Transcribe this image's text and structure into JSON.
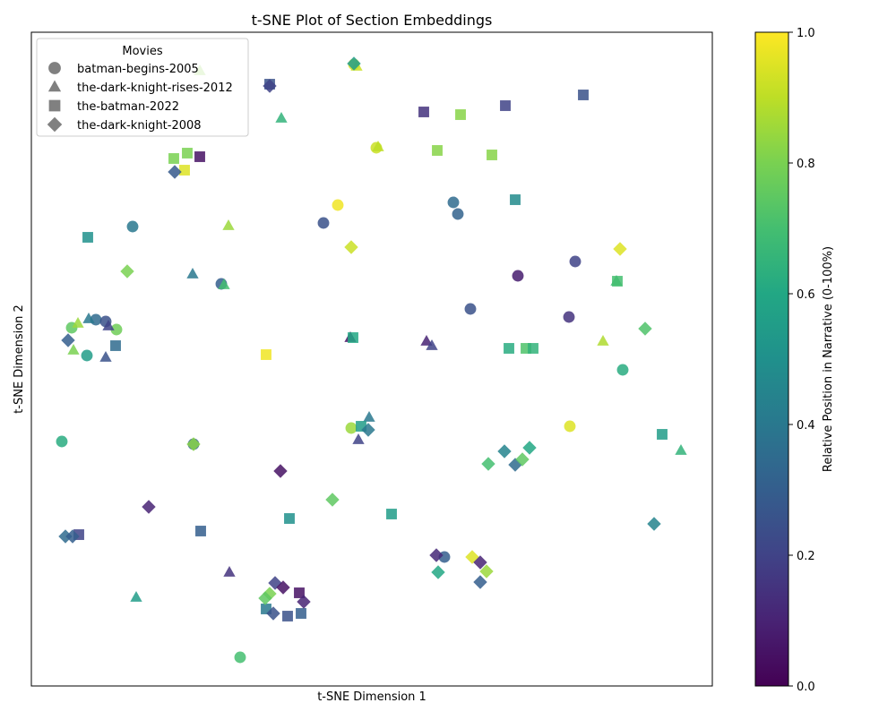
{
  "chart_data": {
    "type": "scatter",
    "title": "t-SNE Plot of Section Embeddings",
    "xlabel": "t-SNE Dimension 1",
    "ylabel": "t-SNE Dimension 2",
    "xlim": [
      0,
      760
    ],
    "ylim": [
      0,
      730
    ],
    "x_ticks_shown": false,
    "y_ticks_shown": false,
    "grid": false,
    "legend": {
      "title": "Movies",
      "placement": "top-left",
      "entries": [
        {
          "label": "batman-begins-2005",
          "marker": "circle"
        },
        {
          "label": "the-dark-knight-rises-2012",
          "marker": "triangle"
        },
        {
          "label": "the-batman-2022",
          "marker": "square"
        },
        {
          "label": "the-dark-knight-2008",
          "marker": "diamond"
        }
      ]
    },
    "colorbar": {
      "label": "Relative Position in Narrative (0-100%)",
      "range": [
        0,
        1
      ],
      "ticks": [
        "0.0",
        "0.2",
        "0.4",
        "0.6",
        "0.8",
        "1.0"
      ],
      "colormap": "viridis"
    },
    "series": [
      {
        "name": "batman-begins-2005",
        "marker": "circle",
        "points": [
          {
            "x": 360,
            "y": 694,
            "c": 0.95
          },
          {
            "x": 385,
            "y": 601,
            "c": 0.92
          },
          {
            "x": 326,
            "y": 517,
            "c": 0.25
          },
          {
            "x": 342,
            "y": 537,
            "c": 0.98
          },
          {
            "x": 113,
            "y": 513,
            "c": 0.4
          },
          {
            "x": 212,
            "y": 449,
            "c": 0.3
          },
          {
            "x": 471,
            "y": 540,
            "c": 0.35
          },
          {
            "x": 476,
            "y": 527,
            "c": 0.32
          },
          {
            "x": 607,
            "y": 474,
            "c": 0.2
          },
          {
            "x": 543,
            "y": 458,
            "c": 0.08
          },
          {
            "x": 490,
            "y": 421,
            "c": 0.25
          },
          {
            "x": 600,
            "y": 412,
            "c": 0.15
          },
          {
            "x": 45,
            "y": 400,
            "c": 0.75
          },
          {
            "x": 72,
            "y": 409,
            "c": 0.35
          },
          {
            "x": 83,
            "y": 407,
            "c": 0.25
          },
          {
            "x": 95,
            "y": 398,
            "c": 0.78
          },
          {
            "x": 62,
            "y": 369,
            "c": 0.55
          },
          {
            "x": 660,
            "y": 353,
            "c": 0.62
          },
          {
            "x": 34,
            "y": 273,
            "c": 0.62
          },
          {
            "x": 357,
            "y": 288,
            "c": 0.85
          },
          {
            "x": 181,
            "y": 270,
            "c": 0.32
          },
          {
            "x": 601,
            "y": 290,
            "c": 0.95
          },
          {
            "x": 461,
            "y": 144,
            "c": 0.3
          },
          {
            "x": 233,
            "y": 32,
            "c": 0.7
          }
        ]
      },
      {
        "name": "the-dark-knight-rises-2012",
        "marker": "triangle",
        "points": [
          {
            "x": 363,
            "y": 692,
            "c": 0.92
          },
          {
            "x": 279,
            "y": 634,
            "c": 0.65
          },
          {
            "x": 387,
            "y": 602,
            "c": 0.9
          },
          {
            "x": 188,
            "y": 687,
            "c": 0.82
          },
          {
            "x": 220,
            "y": 514,
            "c": 0.85
          },
          {
            "x": 180,
            "y": 460,
            "c": 0.4
          },
          {
            "x": 215,
            "y": 448,
            "c": 0.7
          },
          {
            "x": 52,
            "y": 405,
            "c": 0.85
          },
          {
            "x": 64,
            "y": 410,
            "c": 0.4
          },
          {
            "x": 86,
            "y": 402,
            "c": 0.2
          },
          {
            "x": 47,
            "y": 375,
            "c": 0.8
          },
          {
            "x": 83,
            "y": 367,
            "c": 0.25
          },
          {
            "x": 356,
            "y": 389,
            "c": 0.05
          },
          {
            "x": 441,
            "y": 385,
            "c": 0.1
          },
          {
            "x": 447,
            "y": 380,
            "c": 0.2
          },
          {
            "x": 638,
            "y": 385,
            "c": 0.88
          },
          {
            "x": 653,
            "y": 452,
            "c": 0.68
          },
          {
            "x": 377,
            "y": 300,
            "c": 0.4
          },
          {
            "x": 365,
            "y": 275,
            "c": 0.2
          },
          {
            "x": 725,
            "y": 263,
            "c": 0.65
          },
          {
            "x": 221,
            "y": 127,
            "c": 0.15
          },
          {
            "x": 117,
            "y": 99,
            "c": 0.55
          }
        ]
      },
      {
        "name": "the-batman-2022",
        "marker": "square",
        "points": [
          {
            "x": 266,
            "y": 672,
            "c": 0.25
          },
          {
            "x": 438,
            "y": 641,
            "c": 0.15
          },
          {
            "x": 479,
            "y": 638,
            "c": 0.82
          },
          {
            "x": 529,
            "y": 648,
            "c": 0.2
          },
          {
            "x": 616,
            "y": 660,
            "c": 0.25
          },
          {
            "x": 453,
            "y": 598,
            "c": 0.82
          },
          {
            "x": 514,
            "y": 593,
            "c": 0.82
          },
          {
            "x": 159,
            "y": 589,
            "c": 0.8
          },
          {
            "x": 174,
            "y": 595,
            "c": 0.8
          },
          {
            "x": 188,
            "y": 591,
            "c": 0.05
          },
          {
            "x": 171,
            "y": 576,
            "c": 0.95
          },
          {
            "x": 540,
            "y": 543,
            "c": 0.48
          },
          {
            "x": 63,
            "y": 501,
            "c": 0.5
          },
          {
            "x": 359,
            "y": 389,
            "c": 0.6
          },
          {
            "x": 262,
            "y": 370,
            "c": 0.98
          },
          {
            "x": 533,
            "y": 377,
            "c": 0.62
          },
          {
            "x": 552,
            "y": 377,
            "c": 0.72
          },
          {
            "x": 560,
            "y": 377,
            "c": 0.65
          },
          {
            "x": 654,
            "y": 452,
            "c": 0.7
          },
          {
            "x": 94,
            "y": 380,
            "c": 0.35
          },
          {
            "x": 368,
            "y": 290,
            "c": 0.55
          },
          {
            "x": 704,
            "y": 281,
            "c": 0.55
          },
          {
            "x": 288,
            "y": 187,
            "c": 0.5
          },
          {
            "x": 402,
            "y": 192,
            "c": 0.55
          },
          {
            "x": 189,
            "y": 173,
            "c": 0.3
          },
          {
            "x": 53,
            "y": 169,
            "c": 0.2
          },
          {
            "x": 299,
            "y": 104,
            "c": 0.05
          },
          {
            "x": 262,
            "y": 86,
            "c": 0.4
          },
          {
            "x": 286,
            "y": 78,
            "c": 0.25
          },
          {
            "x": 301,
            "y": 81,
            "c": 0.3
          }
        ]
      },
      {
        "name": "the-dark-knight-2008",
        "marker": "diamond",
        "points": [
          {
            "x": 266,
            "y": 670,
            "c": 0.2
          },
          {
            "x": 360,
            "y": 695,
            "c": 0.55
          },
          {
            "x": 160,
            "y": 574,
            "c": 0.28
          },
          {
            "x": 357,
            "y": 490,
            "c": 0.92
          },
          {
            "x": 657,
            "y": 488,
            "c": 0.95
          },
          {
            "x": 107,
            "y": 463,
            "c": 0.8
          },
          {
            "x": 685,
            "y": 399,
            "c": 0.72
          },
          {
            "x": 41,
            "y": 386,
            "c": 0.3
          },
          {
            "x": 376,
            "y": 286,
            "c": 0.4
          },
          {
            "x": 181,
            "y": 270,
            "c": 0.82
          },
          {
            "x": 510,
            "y": 248,
            "c": 0.7
          },
          {
            "x": 528,
            "y": 262,
            "c": 0.45
          },
          {
            "x": 540,
            "y": 247,
            "c": 0.35
          },
          {
            "x": 548,
            "y": 253,
            "c": 0.75
          },
          {
            "x": 556,
            "y": 266,
            "c": 0.6
          },
          {
            "x": 278,
            "y": 240,
            "c": 0.05
          },
          {
            "x": 336,
            "y": 208,
            "c": 0.75
          },
          {
            "x": 131,
            "y": 200,
            "c": 0.1
          },
          {
            "x": 38,
            "y": 167,
            "c": 0.35
          },
          {
            "x": 46,
            "y": 167,
            "c": 0.3
          },
          {
            "x": 695,
            "y": 181,
            "c": 0.45
          },
          {
            "x": 452,
            "y": 146,
            "c": 0.12
          },
          {
            "x": 492,
            "y": 144,
            "c": 0.95
          },
          {
            "x": 501,
            "y": 138,
            "c": 0.1
          },
          {
            "x": 508,
            "y": 128,
            "c": 0.85
          },
          {
            "x": 454,
            "y": 127,
            "c": 0.6
          },
          {
            "x": 501,
            "y": 116,
            "c": 0.3
          },
          {
            "x": 272,
            "y": 115,
            "c": 0.2
          },
          {
            "x": 281,
            "y": 110,
            "c": 0.05
          },
          {
            "x": 266,
            "y": 103,
            "c": 0.8
          },
          {
            "x": 261,
            "y": 98,
            "c": 0.75
          },
          {
            "x": 304,
            "y": 94,
            "c": 0.1
          },
          {
            "x": 270,
            "y": 81,
            "c": 0.25
          }
        ]
      }
    ]
  }
}
